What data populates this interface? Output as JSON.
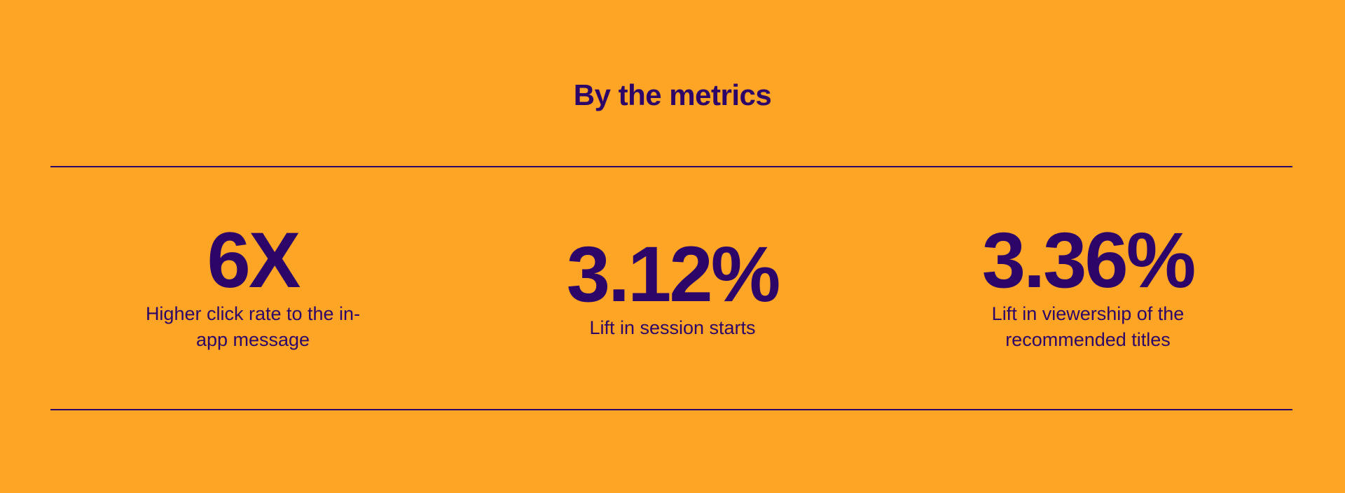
{
  "title": "By the metrics",
  "colors": {
    "background": "#FEA526",
    "text": "#2D0467"
  },
  "stats": [
    {
      "value": "6X",
      "label": "Higher click rate to the in-app message"
    },
    {
      "value": "3.12%",
      "label": "Lift in session starts"
    },
    {
      "value": "3.36%",
      "label": "Lift in viewership of the recommended titles"
    }
  ]
}
